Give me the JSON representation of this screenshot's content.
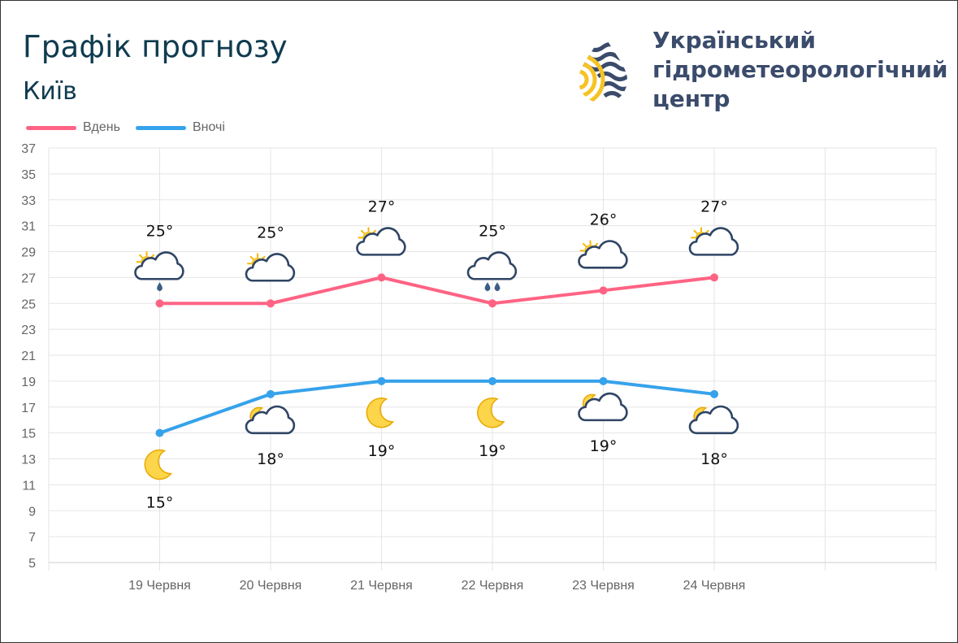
{
  "header": {
    "title": "Графік прогнозу",
    "city": "Київ"
  },
  "logo": {
    "lines": [
      "Український",
      "гідрометеорологічний",
      "центр"
    ],
    "colors": {
      "navy": "#3a4b6b",
      "yellow": "#f6c324"
    }
  },
  "legend": [
    {
      "label": "Вдень",
      "color": "#ff6384"
    },
    {
      "label": "Вночі",
      "color": "#36a2eb"
    }
  ],
  "chart_data": {
    "type": "line",
    "categories": [
      "19 Червня",
      "20 Червня",
      "21 Червня",
      "22 Червня",
      "23 Червня",
      "24 Червня"
    ],
    "ylim": [
      5,
      37
    ],
    "yticks": [
      5,
      7,
      9,
      11,
      13,
      15,
      17,
      19,
      21,
      23,
      25,
      27,
      29,
      31,
      33,
      35,
      37
    ],
    "grid": true,
    "legend_position": "top-left",
    "series": [
      {
        "name": "Вдень",
        "color": "#ff6384",
        "values": [
          25,
          25,
          27,
          25,
          26,
          27
        ],
        "labels": [
          "25°",
          "25°",
          "27°",
          "25°",
          "26°",
          "27°"
        ],
        "icons": [
          "sun-cloud-rain-icon",
          "sun-cloud-icon",
          "sun-cloud-icon",
          "cloud-rain-icon",
          "sun-cloud-icon",
          "sun-cloud-icon"
        ]
      },
      {
        "name": "Вночі",
        "color": "#36a2eb",
        "values": [
          15,
          18,
          19,
          19,
          19,
          18
        ],
        "labels": [
          "15°",
          "18°",
          "19°",
          "19°",
          "19°",
          "18°"
        ],
        "icons": [
          "moon-icon",
          "moon-cloud-icon",
          "moon-icon",
          "moon-icon",
          "moon-cloud-icon",
          "moon-cloud-icon"
        ]
      }
    ]
  }
}
